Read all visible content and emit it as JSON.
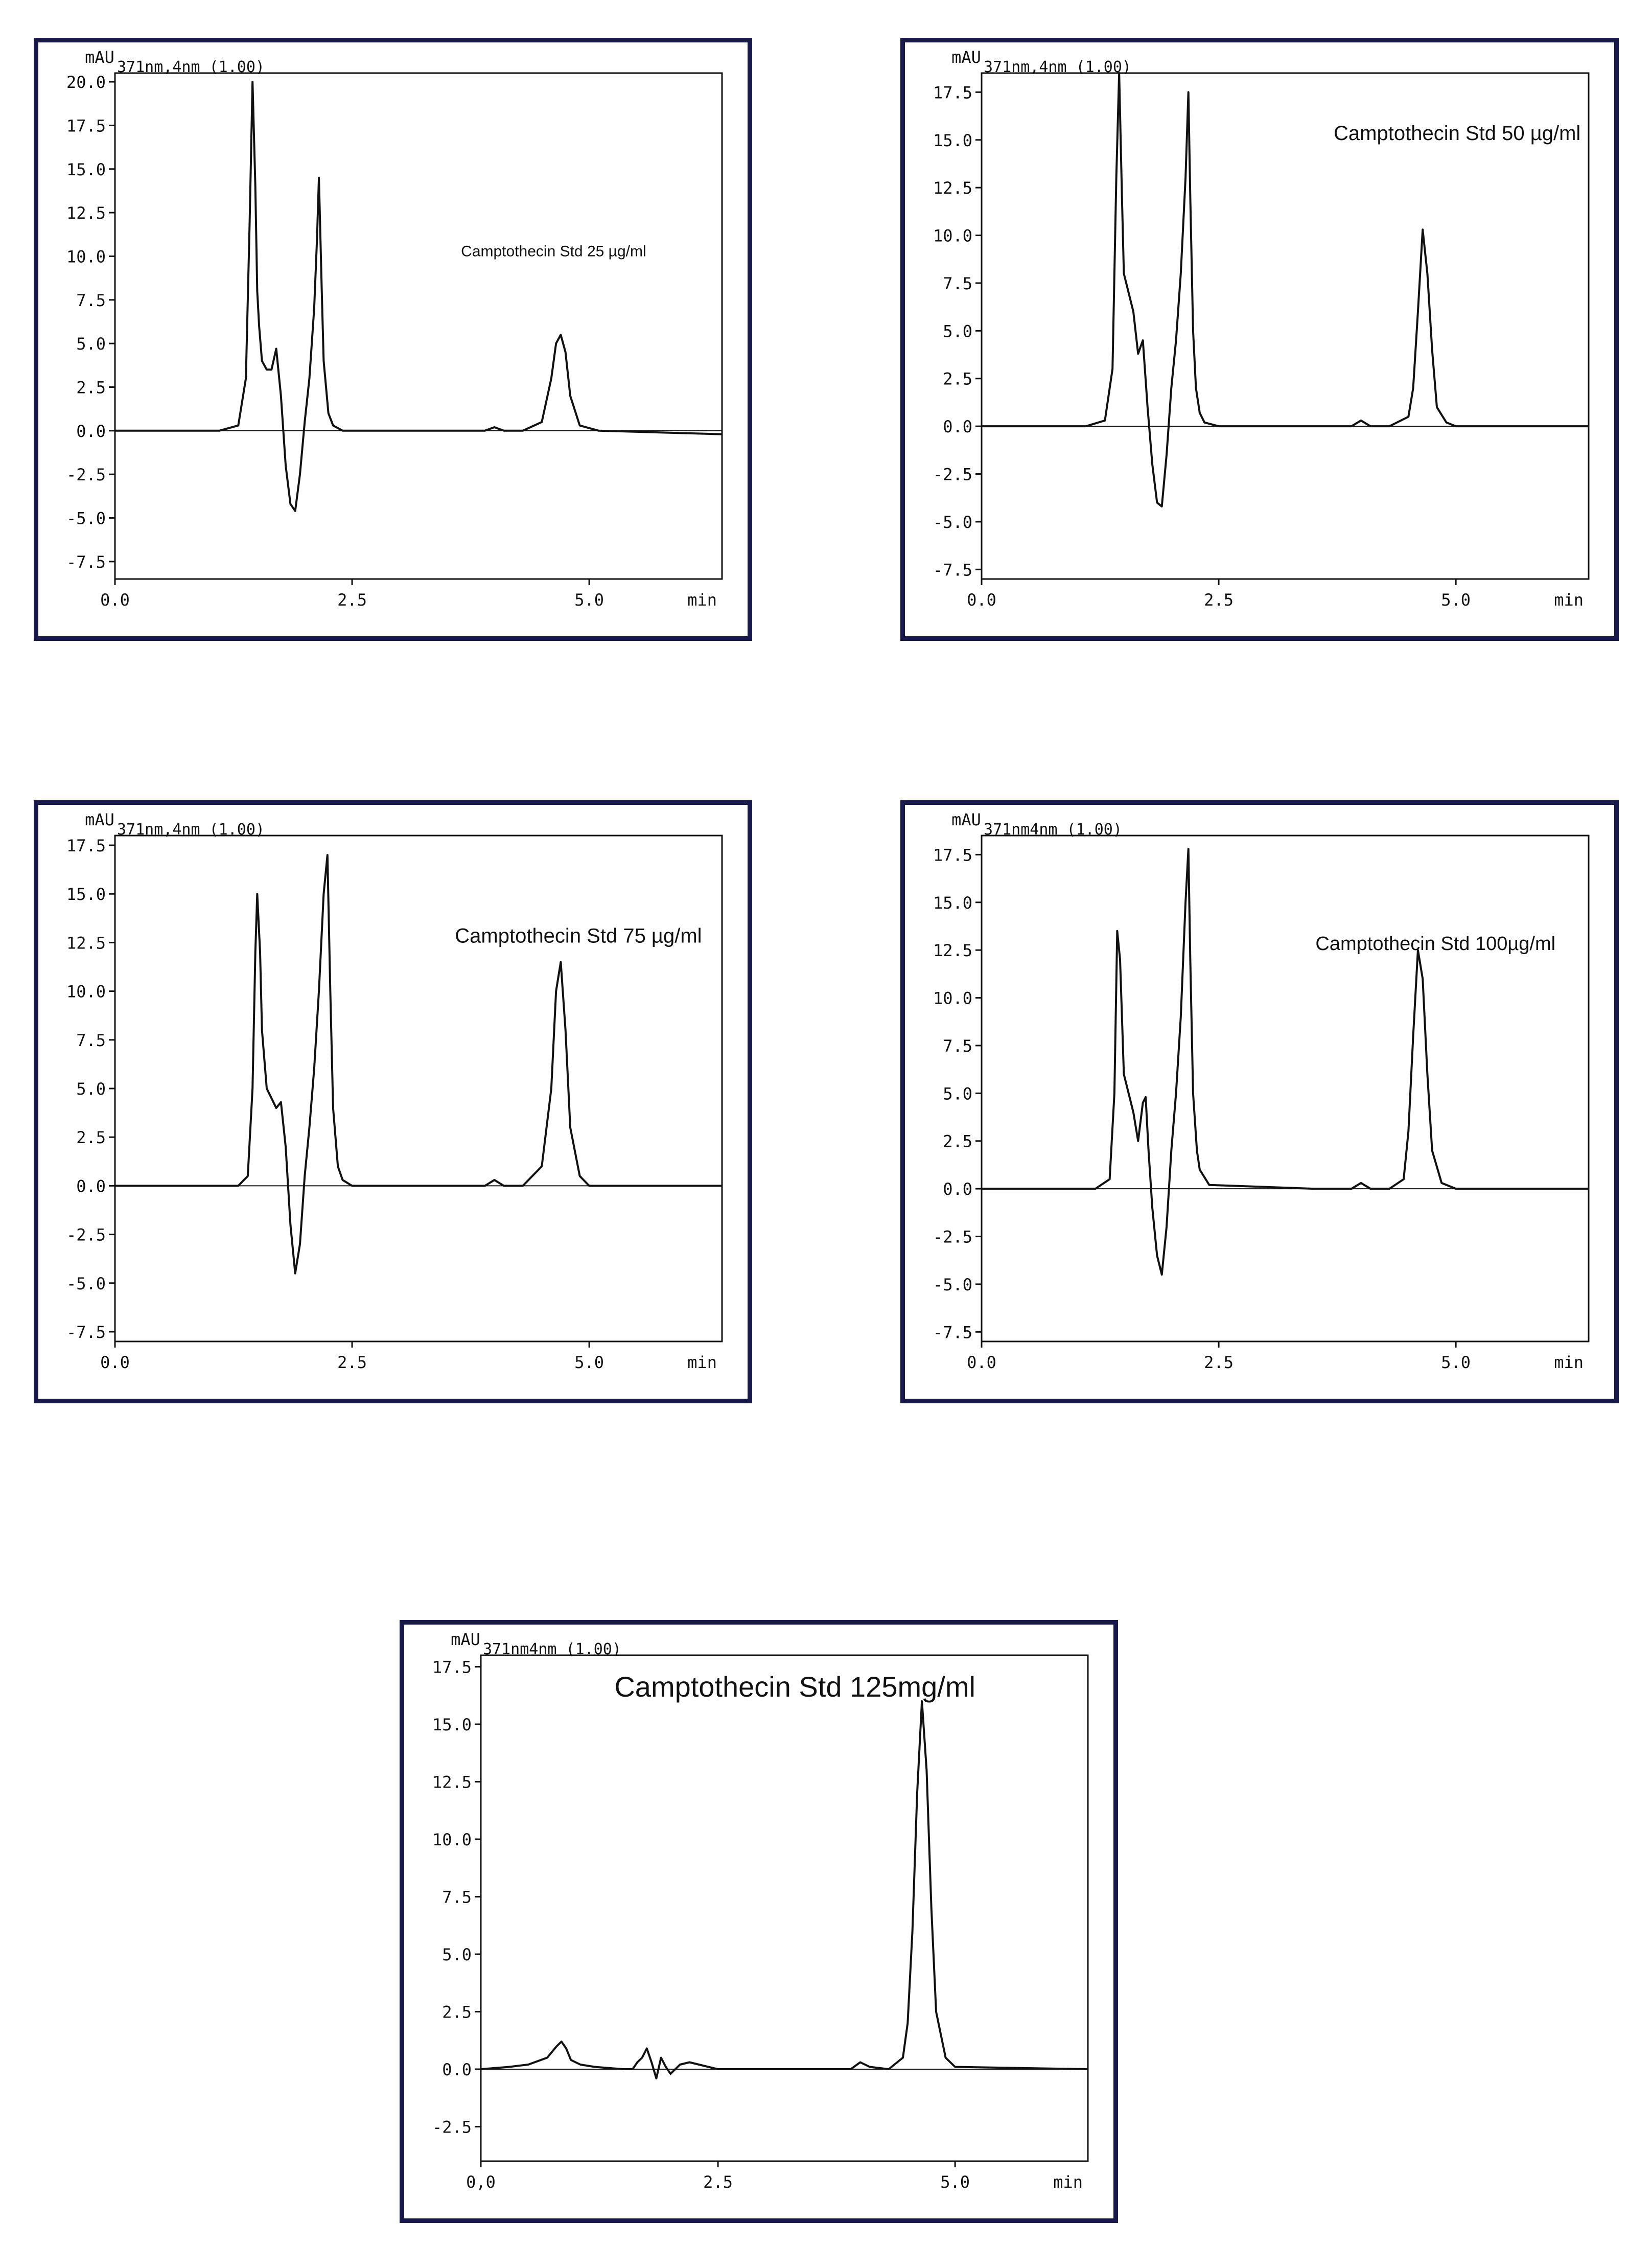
{
  "chart_data": [
    {
      "type": "line",
      "ylabel": "mAU",
      "detector": "371nm,4nm (1.00)",
      "xlabel": "min",
      "annotation": "Camptothecin Std 25 µg/ml",
      "xlim": [
        0,
        6.4
      ],
      "ylim": [
        -8.5,
        20.5
      ],
      "xticks": [
        "0.0",
        "2.5",
        "5.0"
      ],
      "yticks": [
        "20.0",
        "17.5",
        "15.0",
        "12.5",
        "10.0",
        "7.5",
        "5.0",
        "2.5",
        "0.0",
        "-2.5",
        "-5.0",
        "-7.5"
      ],
      "series": [
        {
          "x": [
            0.0,
            1.1,
            1.3,
            1.38,
            1.42,
            1.45,
            1.48,
            1.5,
            1.52,
            1.55,
            1.6,
            1.65,
            1.7,
            1.75,
            1.8,
            1.85,
            1.9,
            1.95,
            2.0,
            2.05,
            2.1,
            2.13,
            2.15,
            2.18,
            2.2,
            2.25,
            2.3,
            2.4,
            2.6,
            3.5,
            3.9,
            4.0,
            4.1,
            4.3,
            4.5,
            4.6,
            4.65,
            4.7,
            4.75,
            4.8,
            4.9,
            5.1,
            6.4
          ],
          "y": [
            0.0,
            0.0,
            0.3,
            3.0,
            12.0,
            20.0,
            14.0,
            8.0,
            6.0,
            4.0,
            3.5,
            3.5,
            4.7,
            2.0,
            -2.0,
            -4.2,
            -4.6,
            -2.5,
            0.5,
            3.0,
            7.0,
            11.0,
            14.5,
            8.0,
            4.0,
            1.0,
            0.3,
            0.0,
            0.0,
            0.0,
            0.0,
            0.2,
            0.0,
            0.0,
            0.5,
            3.0,
            5.0,
            5.5,
            4.5,
            2.0,
            0.3,
            0.0,
            -0.2
          ]
        }
      ]
    },
    {
      "type": "line",
      "ylabel": "mAU",
      "detector": "371nm,4nm (1.00)",
      "xlabel": "min",
      "annotation": "Camptothecin Std 50 µg/ml",
      "xlim": [
        0,
        6.4
      ],
      "ylim": [
        -8.0,
        18.5
      ],
      "xticks": [
        "0.0",
        "2.5",
        "5.0"
      ],
      "yticks": [
        "17.5",
        "15.0",
        "12.5",
        "10.0",
        "7.5",
        "5.0",
        "2.5",
        "0.0",
        "-2.5",
        "-5.0",
        "-7.5"
      ],
      "series": [
        {
          "x": [
            0.0,
            1.1,
            1.3,
            1.38,
            1.42,
            1.45,
            1.48,
            1.5,
            1.55,
            1.6,
            1.65,
            1.7,
            1.75,
            1.8,
            1.85,
            1.9,
            1.95,
            2.0,
            2.05,
            2.1,
            2.15,
            2.18,
            2.2,
            2.23,
            2.26,
            2.3,
            2.35,
            2.5,
            3.5,
            3.9,
            4.0,
            4.1,
            4.3,
            4.5,
            4.55,
            4.6,
            4.65,
            4.7,
            4.75,
            4.8,
            4.9,
            5.0,
            6.4
          ],
          "y": [
            0.0,
            0.0,
            0.3,
            3.0,
            13.0,
            18.5,
            12.0,
            8.0,
            7.0,
            6.0,
            3.8,
            4.5,
            1.0,
            -2.0,
            -4.0,
            -4.2,
            -1.5,
            2.0,
            4.5,
            8.0,
            13.0,
            17.5,
            12.0,
            5.0,
            2.0,
            0.7,
            0.2,
            0.0,
            0.0,
            0.0,
            0.3,
            0.0,
            0.0,
            0.5,
            2.0,
            6.0,
            10.3,
            8.0,
            4.0,
            1.0,
            0.2,
            0.0,
            0.0
          ]
        }
      ]
    },
    {
      "type": "line",
      "ylabel": "mAU",
      "detector": "371nm,4nm (1.00)",
      "xlabel": "min",
      "annotation": "Camptothecin Std 75 µg/ml",
      "xlim": [
        0,
        6.4
      ],
      "ylim": [
        -8.0,
        18.0
      ],
      "xticks": [
        "0.0",
        "2.5",
        "5.0"
      ],
      "yticks": [
        "17.5",
        "15.0",
        "12.5",
        "10.0",
        "7.5",
        "5.0",
        "2.5",
        "0.0",
        "-2.5",
        "-5.0",
        "-7.5"
      ],
      "series": [
        {
          "x": [
            0.0,
            1.3,
            1.4,
            1.45,
            1.48,
            1.5,
            1.53,
            1.55,
            1.6,
            1.65,
            1.7,
            1.75,
            1.8,
            1.85,
            1.9,
            1.95,
            2.0,
            2.05,
            2.1,
            2.15,
            2.2,
            2.24,
            2.27,
            2.3,
            2.35,
            2.4,
            2.5,
            3.5,
            3.9,
            4.0,
            4.1,
            4.3,
            4.5,
            4.6,
            4.65,
            4.7,
            4.75,
            4.8,
            4.9,
            5.0,
            6.4
          ],
          "y": [
            0.0,
            0.0,
            0.5,
            5.0,
            12.0,
            15.0,
            12.0,
            8.0,
            5.0,
            4.5,
            4.0,
            4.3,
            2.0,
            -2.0,
            -4.5,
            -3.0,
            0.5,
            3.0,
            6.0,
            10.0,
            15.0,
            17.0,
            10.0,
            4.0,
            1.0,
            0.3,
            0.0,
            0.0,
            0.0,
            0.3,
            0.0,
            0.0,
            1.0,
            5.0,
            10.0,
            11.5,
            8.0,
            3.0,
            0.5,
            0.0,
            0.0
          ]
        }
      ]
    },
    {
      "type": "line",
      "ylabel": "mAU",
      "detector": "371nm4nm (1.00)",
      "xlabel": "min",
      "annotation": "Camptothecin Std 100µg/ml",
      "xlim": [
        0,
        6.4
      ],
      "ylim": [
        -8.0,
        18.5
      ],
      "xticks": [
        "0.0",
        "2.5",
        "5.0"
      ],
      "yticks": [
        "17.5",
        "15.0",
        "12.5",
        "10.0",
        "7.5",
        "5.0",
        "2.5",
        "0.0",
        "-2.5",
        "-5.0",
        "-7.5"
      ],
      "series": [
        {
          "x": [
            0.0,
            1.2,
            1.35,
            1.4,
            1.43,
            1.46,
            1.5,
            1.55,
            1.6,
            1.65,
            1.7,
            1.73,
            1.76,
            1.8,
            1.85,
            1.9,
            1.95,
            2.0,
            2.05,
            2.1,
            2.15,
            2.18,
            2.2,
            2.23,
            2.27,
            2.3,
            2.4,
            3.5,
            3.9,
            4.0,
            4.1,
            4.3,
            4.45,
            4.5,
            4.55,
            4.6,
            4.65,
            4.7,
            4.75,
            4.85,
            5.0,
            6.4
          ],
          "y": [
            0.0,
            0.0,
            0.5,
            5.0,
            13.5,
            12.0,
            6.0,
            5.0,
            4.0,
            2.5,
            4.5,
            4.8,
            2.0,
            -1.0,
            -3.5,
            -4.5,
            -2.0,
            2.0,
            5.0,
            9.0,
            15.0,
            17.8,
            12.0,
            5.0,
            2.0,
            1.0,
            0.2,
            0.0,
            0.0,
            0.3,
            0.0,
            0.0,
            0.5,
            3.0,
            8.0,
            12.5,
            11.0,
            6.0,
            2.0,
            0.3,
            0.0,
            0.0
          ]
        }
      ]
    },
    {
      "type": "line",
      "ylabel": "mAU",
      "detector": "371nm4nm (1.00)",
      "xlabel": "min",
      "annotation": "Camptothecin Std 125mg/ml",
      "xlim": [
        0,
        6.4
      ],
      "ylim": [
        -4.0,
        18.0
      ],
      "xticks": [
        "0,0",
        "2.5",
        "5.0"
      ],
      "yticks": [
        "17.5",
        "15.0",
        "12.5",
        "10.0",
        "7.5",
        "5.0",
        "2.5",
        "0.0",
        "-2.5"
      ],
      "series": [
        {
          "x": [
            0.0,
            0.3,
            0.5,
            0.7,
            0.8,
            0.85,
            0.9,
            0.95,
            1.05,
            1.2,
            1.5,
            1.6,
            1.65,
            1.7,
            1.75,
            1.8,
            1.85,
            1.9,
            1.95,
            2.0,
            2.1,
            2.2,
            2.3,
            2.5,
            3.5,
            3.9,
            4.0,
            4.1,
            4.3,
            4.45,
            4.5,
            4.55,
            4.6,
            4.65,
            4.7,
            4.75,
            4.8,
            4.9,
            5.0,
            6.4
          ],
          "y": [
            0.0,
            0.1,
            0.2,
            0.5,
            1.0,
            1.2,
            0.9,
            0.4,
            0.2,
            0.1,
            0.0,
            0.0,
            0.3,
            0.5,
            0.9,
            0.3,
            -0.4,
            0.5,
            0.1,
            -0.2,
            0.2,
            0.3,
            0.2,
            0.0,
            0.0,
            0.0,
            0.3,
            0.1,
            0.0,
            0.5,
            2.0,
            6.0,
            12.0,
            16.0,
            13.0,
            7.0,
            2.5,
            0.5,
            0.1,
            0.0
          ]
        }
      ]
    }
  ]
}
